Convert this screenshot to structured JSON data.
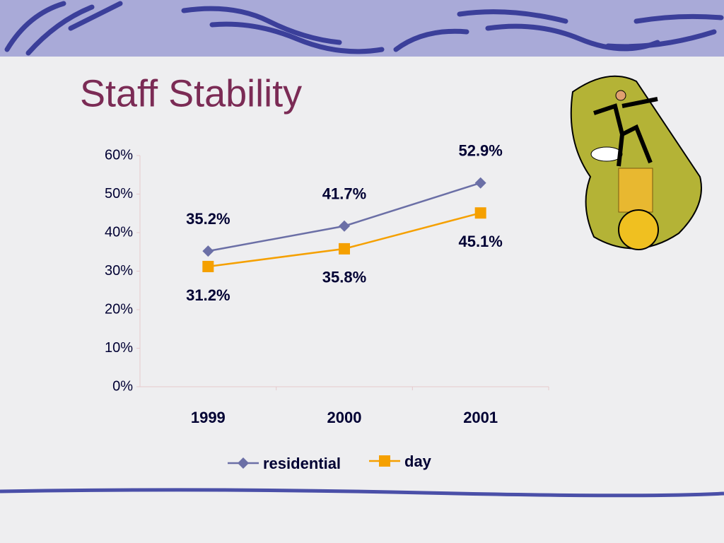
{
  "chart_data": {
    "type": "line",
    "title": "Staff Stability",
    "categories": [
      "1999",
      "2000",
      "2001"
    ],
    "series": [
      {
        "name": "residential",
        "color": "#6b6fa6",
        "marker": "diamond",
        "label_position": "above",
        "values": [
          35.2,
          41.7,
          52.9
        ],
        "value_labels": [
          "35.2%",
          "41.7%",
          "52.9%"
        ]
      },
      {
        "name": "day",
        "color": "#f5a000",
        "marker": "square",
        "label_position": "below",
        "values": [
          31.2,
          35.8,
          45.1
        ],
        "value_labels": [
          "31.2%",
          "35.8%",
          "45.1%"
        ]
      }
    ],
    "ylim": [
      0,
      60
    ],
    "yticks": [
      {
        "value": 0,
        "label": "0%"
      },
      {
        "value": 10,
        "label": "10%"
      },
      {
        "value": 20,
        "label": "20%"
      },
      {
        "value": 30,
        "label": "30%"
      },
      {
        "value": 40,
        "label": "40%"
      },
      {
        "value": 50,
        "label": "50%"
      },
      {
        "value": 60,
        "label": "60%"
      }
    ],
    "grid": false,
    "legend": "bottom"
  }
}
